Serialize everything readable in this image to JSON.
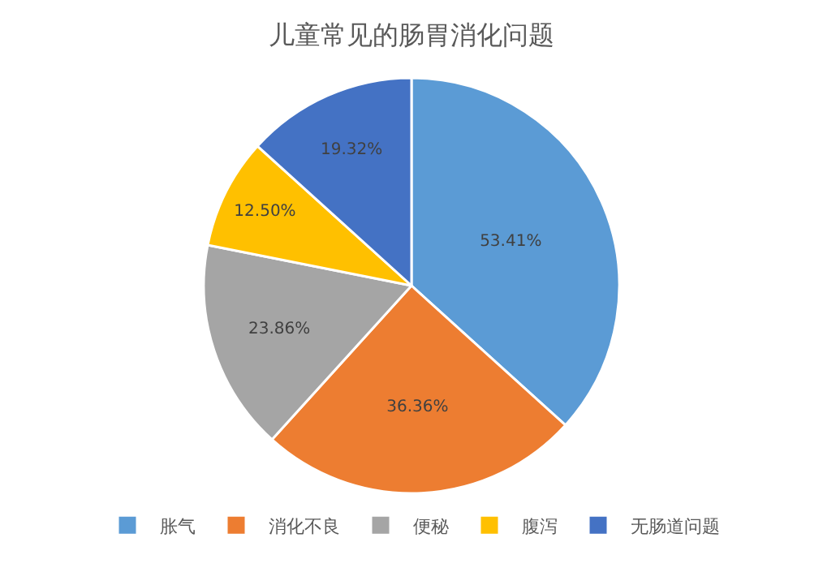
{
  "chart_data": {
    "type": "pie",
    "title": "儿童常见的肠胃消化问题",
    "categories": [
      "胀气",
      "消化不良",
      "便秘",
      "腹泻",
      "无肠道问题"
    ],
    "values": [
      53.41,
      36.36,
      23.86,
      12.5,
      19.32
    ],
    "value_labels": [
      "53.41%",
      "36.36%",
      "23.86%",
      "12.50%",
      "19.32%"
    ],
    "colors": [
      "#5b9bd5",
      "#ed7d31",
      "#a5a5a5",
      "#ffc000",
      "#4472c4"
    ],
    "legend": "bottom"
  }
}
